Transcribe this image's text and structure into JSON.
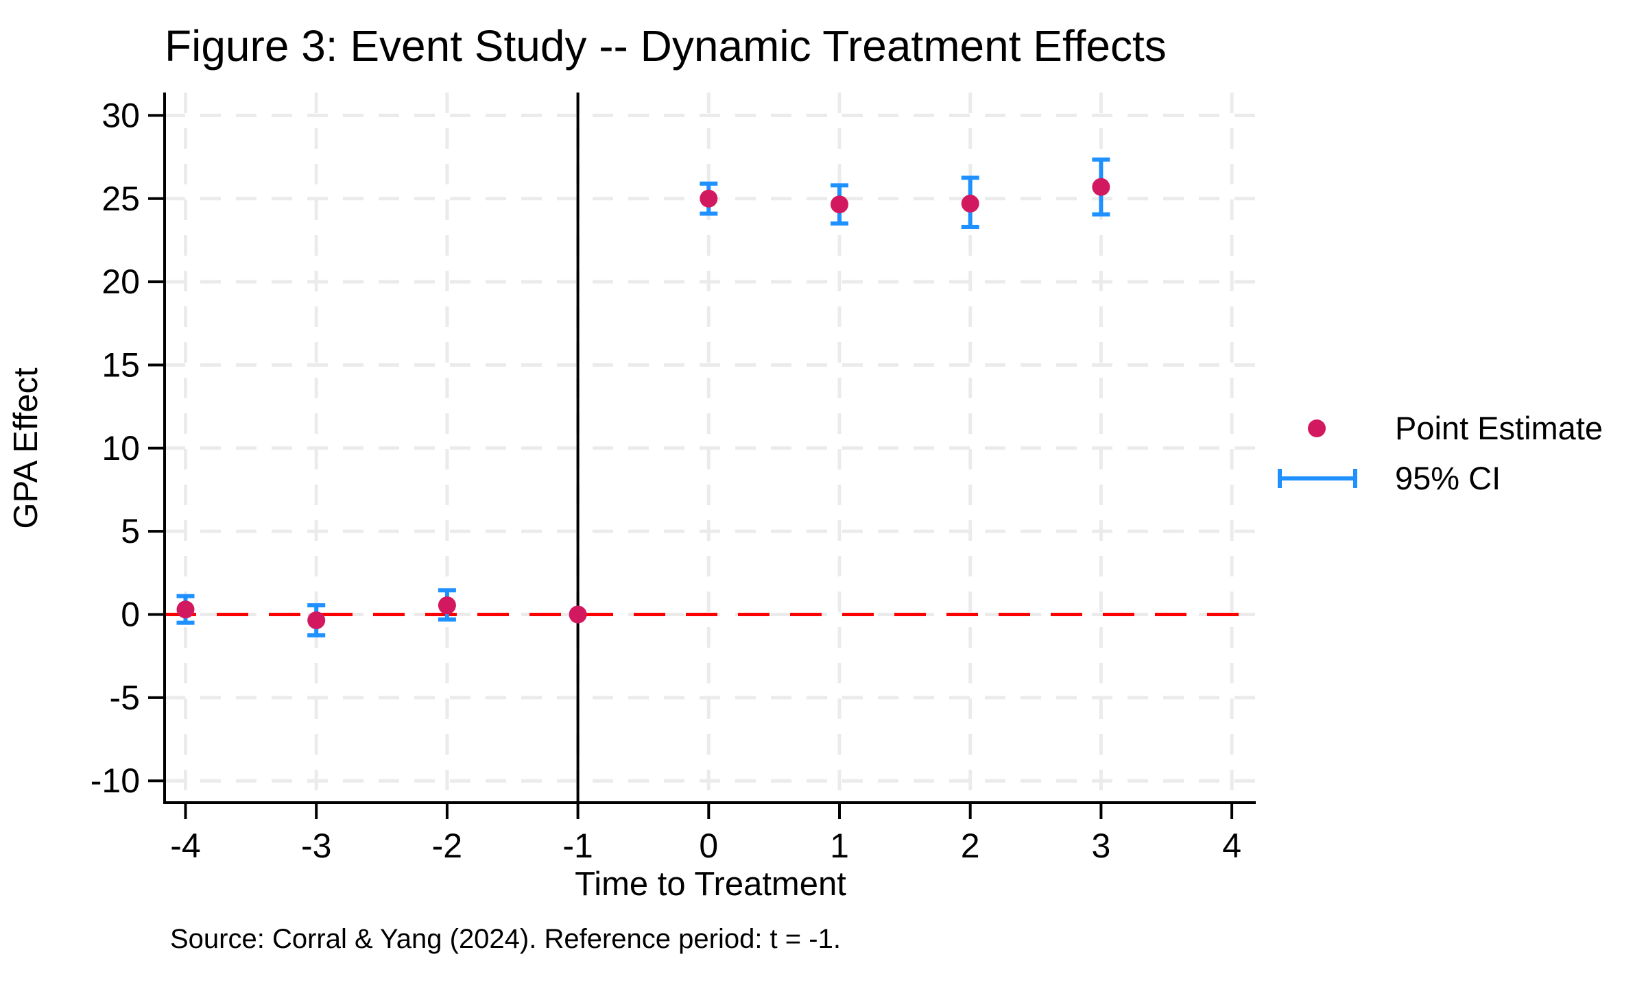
{
  "figure": {
    "title": "Figure 3: Event Study -- Dynamic Treatment Effects",
    "source_note": "Source: Corral & Yang (2024). Reference period: t = -1."
  },
  "chart_data": {
    "type": "scatter",
    "subtype": "event-study with 95% confidence error bars",
    "title": "Figure 3: Event Study -- Dynamic Treatment Effects",
    "xlabel": "Time to Treatment",
    "ylabel": "GPA Effect",
    "x_ticks": [
      -4,
      -3,
      -2,
      -1,
      0,
      1,
      2,
      3,
      4
    ],
    "y_ticks": [
      -10,
      -5,
      0,
      5,
      10,
      15,
      20,
      25,
      30
    ],
    "xlim": [
      -4.16,
      4.19
    ],
    "ylim": [
      -11.3,
      31.4
    ],
    "grid": {
      "horizontal": true,
      "vertical": true,
      "style": "dashed"
    },
    "reference_lines": {
      "zero_line": {
        "axis": "y",
        "value": 0,
        "style": "dashed",
        "color": "#FF0000"
      },
      "event_line": {
        "axis": "x",
        "value": -1,
        "style": "solid",
        "color": "#000000"
      }
    },
    "series": [
      {
        "name": "Point Estimate",
        "reference_period": -1,
        "x": [
          -4,
          -3,
          -2,
          -1,
          0,
          1,
          2,
          3
        ],
        "estimates": [
          0.3,
          -0.35,
          0.55,
          0,
          25.0,
          24.65,
          24.7,
          25.7
        ],
        "ci_low": [
          -0.5,
          -1.25,
          -0.3,
          null,
          24.1,
          23.5,
          23.3,
          24.05
        ],
        "ci_high": [
          1.1,
          0.55,
          1.45,
          null,
          25.9,
          25.8,
          26.25,
          27.35
        ]
      }
    ],
    "legend": {
      "position": "right",
      "entries": [
        {
          "label": "Point Estimate",
          "marker": "dot"
        },
        {
          "label": "95% CI",
          "marker": "errorbar"
        }
      ]
    },
    "colors": {
      "point": "#D2185E",
      "ci": "#1E90FF",
      "zero_line": "#FF0000",
      "event_line": "#000000",
      "grid": "#EBEBEB",
      "axis": "#000000"
    }
  }
}
